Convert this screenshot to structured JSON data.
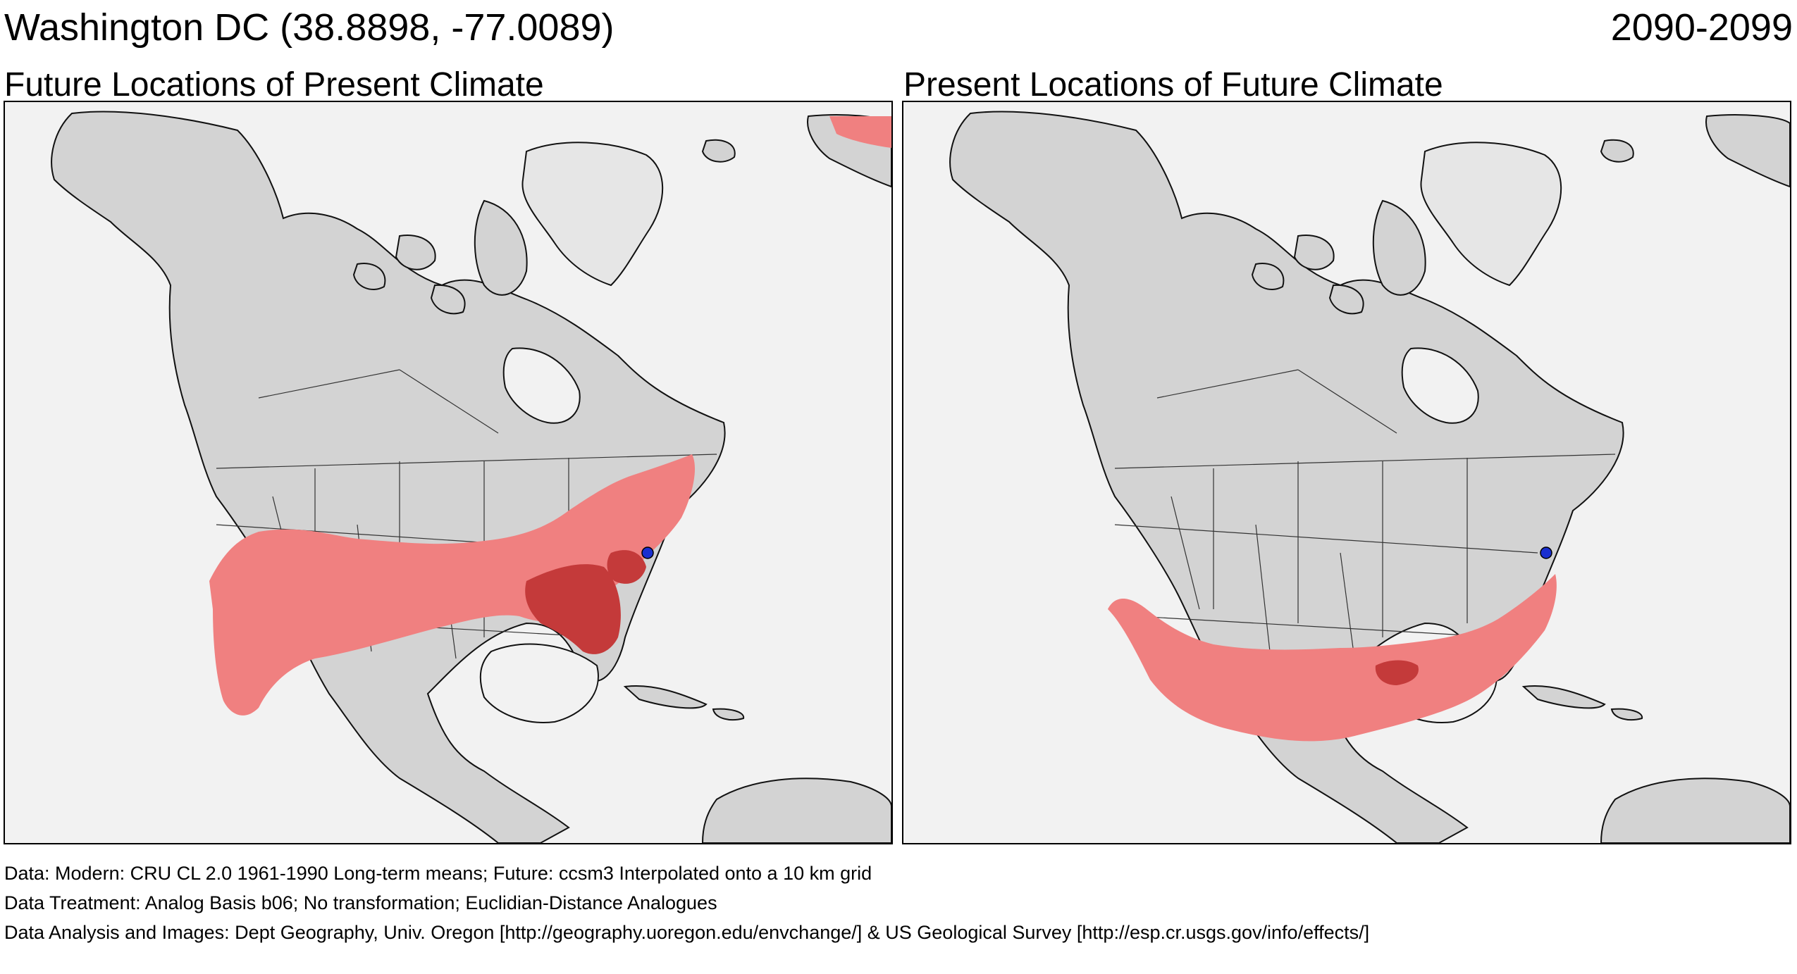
{
  "header": {
    "location_title": "Washington DC  (38.8898, -77.0089)",
    "period": "2090-2099"
  },
  "panels": [
    {
      "id": "left",
      "title": "Future Locations of Present Climate"
    },
    {
      "id": "right",
      "title": "Present Locations of Future Climate"
    }
  ],
  "legend_colors": {
    "land": "#d3d3d3",
    "water": "#f2f2f2",
    "analog_light": "#f08080",
    "analog_dark": "#c43a3a",
    "site_marker": "#1a2fd0"
  },
  "site_marker_icon": "location-dot-icon",
  "footer": {
    "data": "Data:  Modern: CRU CL 2.0 1961-1990 Long-term means; Future: ccsm3 Interpolated onto a 10 km grid",
    "treatment": "Data Treatment:  Analog Basis b06; No transformation; Euclidian-Distance Analogues",
    "analysis": "Data Analysis and Images:  Dept Geography, Univ. Oregon [http://geography.uoregon.edu/envchange/] & US Geological Survey [http://esp.cr.usgs.gov/info/effects/]"
  }
}
